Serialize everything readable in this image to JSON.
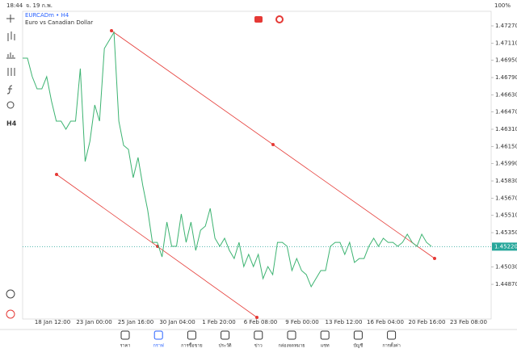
{
  "status_bar": {
    "time": "18:44",
    "date": "จ. 19 ก.พ.",
    "battery": "100%"
  },
  "left_toolbar": {
    "timeframe": "H4"
  },
  "chart_data": {
    "type": "line",
    "title": "EURCADm • H4",
    "subtitle": "Euro vs Canadian Dollar",
    "color": "#3cb371",
    "values": [
      1.4697,
      1.4697,
      1.46798,
      1.46685,
      1.46685,
      1.46798,
      1.46573,
      1.46385,
      1.46385,
      1.4631,
      1.46385,
      1.46385,
      1.46873,
      1.4601,
      1.46198,
      1.46535,
      1.46385,
      1.4706,
      1.47135,
      1.4721,
      1.46385,
      1.4616,
      1.46123,
      1.4586,
      1.46048,
      1.45785,
      1.4556,
      1.4526,
      1.4526,
      1.45125,
      1.45448,
      1.45223,
      1.45223,
      1.45523,
      1.4526,
      1.45448,
      1.45185,
      1.45373,
      1.4541,
      1.45575,
      1.45298,
      1.45223,
      1.45298,
      1.45185,
      1.4511,
      1.4526,
      1.45035,
      1.45148,
      1.45035,
      1.45148,
      1.44923,
      1.45035,
      1.4496,
      1.4526,
      1.4526,
      1.45223,
      1.44998,
      1.4511,
      1.44998,
      1.4496,
      1.44848,
      1.44923,
      1.44998,
      1.44998,
      1.45223,
      1.4526,
      1.4526,
      1.45148,
      1.4526,
      1.45073,
      1.4511,
      1.4511,
      1.45223,
      1.45298,
      1.45223,
      1.45298,
      1.4526,
      1.4526,
      1.45223,
      1.4526,
      1.45335,
      1.4526,
      1.45223,
      1.45335,
      1.4526,
      1.45223
    ],
    "ylim": [
      1.44548,
      1.47405
    ],
    "yticks": [
      {
        "value": 1.4727,
        "label": "1.47270"
      },
      {
        "value": 1.4711,
        "label": "1.47110"
      },
      {
        "value": 1.4695,
        "label": "1.46950"
      },
      {
        "value": 1.4679,
        "label": "1.46790"
      },
      {
        "value": 1.4663,
        "label": "1.46630"
      },
      {
        "value": 1.4647,
        "label": "1.46470"
      },
      {
        "value": 1.4631,
        "label": "1.46310"
      },
      {
        "value": 1.4615,
        "label": "1.46150"
      },
      {
        "value": 1.4599,
        "label": "1.45990"
      },
      {
        "value": 1.4583,
        "label": "1.45830"
      },
      {
        "value": 1.4567,
        "label": "1.45670"
      },
      {
        "value": 1.4551,
        "label": "1.45510"
      },
      {
        "value": 1.4535,
        "label": "1.45350"
      },
      {
        "value": 1.4503,
        "label": "1.45030"
      },
      {
        "value": 1.4487,
        "label": "1.44870"
      }
    ],
    "current_price": {
      "value": 1.4522,
      "label": "1.45220"
    },
    "time_labels": [
      "18 Jan 12:00",
      "23 Jan 00:00",
      "25 Jan 16:00",
      "30 Jan 04:00",
      "1 Feb 20:00",
      "6 Feb 08:00",
      "9 Feb 00:00",
      "13 Feb 12:00",
      "16 Feb 04:00",
      "20 Feb 16:00",
      "23 Feb 08:00"
    ]
  },
  "nav": {
    "active": 1,
    "items": [
      "ราคา",
      "กราฟ",
      "การซื้อขาย",
      "ประวัติ",
      "ข่าว",
      "กล่องจดหมาย",
      "แชท",
      "บัญชี",
      "การตั้งค่า"
    ]
  }
}
